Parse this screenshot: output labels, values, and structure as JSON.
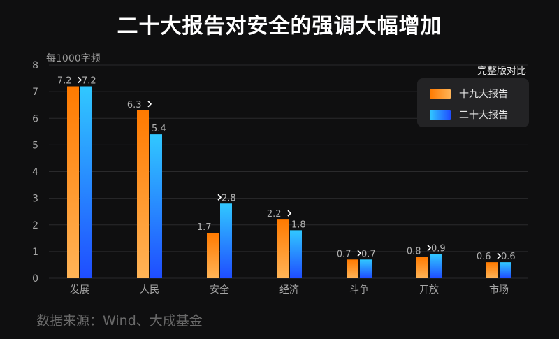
{
  "title": "二十大报告对安全的强调大幅增加",
  "unit_label": "每1000字频",
  "source": "数据来源：Wind、大成基金",
  "legend_title": "完整版对比",
  "colors": {
    "s1_top": "#ff7a00",
    "s1_bottom": "#ffb457",
    "s2_top": "#31c8ff",
    "s2_bottom": "#1f4dff"
  },
  "chart_data": {
    "type": "bar",
    "categories": [
      "发展",
      "人民",
      "安全",
      "经济",
      "斗争",
      "开放",
      "市场"
    ],
    "series": [
      {
        "name": "十九大报告",
        "values": [
          7.2,
          6.3,
          1.7,
          2.2,
          0.7,
          0.8,
          0.6
        ]
      },
      {
        "name": "二十大报告",
        "values": [
          7.2,
          5.4,
          2.8,
          1.8,
          0.7,
          0.9,
          0.6
        ]
      }
    ],
    "ylim": [
      0,
      8
    ],
    "yticks": [
      0,
      1,
      2,
      3,
      4,
      5,
      6,
      7,
      8
    ],
    "grid": true,
    "legend_position": "top-right"
  }
}
